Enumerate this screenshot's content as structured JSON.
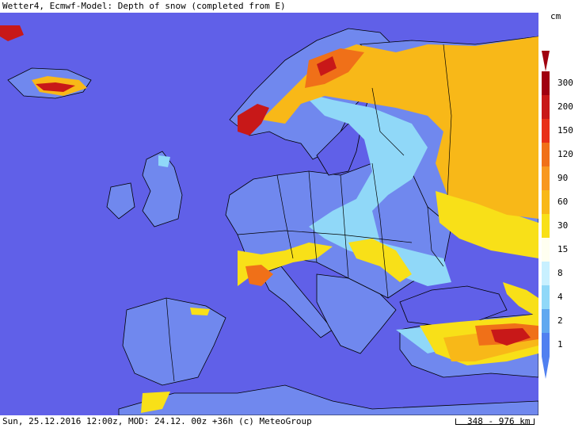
{
  "title": "Wetter4, Ecmwf-Model: Depth of snow (completed from E)",
  "legend": {
    "unit": "cm",
    "levels": [
      {
        "label": "300",
        "color": "#a00010"
      },
      {
        "label": "200",
        "color": "#c81818"
      },
      {
        "label": "150",
        "color": "#e83018"
      },
      {
        "label": "120",
        "color": "#f07018"
      },
      {
        "label": "90",
        "color": "#f89820"
      },
      {
        "label": "60",
        "color": "#f8b818"
      },
      {
        "label": "30",
        "color": "#f8e018"
      },
      {
        "label": "15",
        "color": "#fffff0"
      },
      {
        "label": "8",
        "color": "#c8f0ff"
      },
      {
        "label": "4",
        "color": "#90d8f8"
      },
      {
        "label": "2",
        "color": "#60a8f0"
      },
      {
        "label": "1",
        "color": "#5080f0"
      }
    ]
  },
  "footer": {
    "text": "Sun, 25.12.2016 12:00z, MOD: 24.12. 00z +36h (c) MeteoGroup",
    "scale": "348 - 976 km"
  },
  "colors": {
    "sea": "#6060e8",
    "land_light": "#7090f0",
    "border": "#000000"
  }
}
